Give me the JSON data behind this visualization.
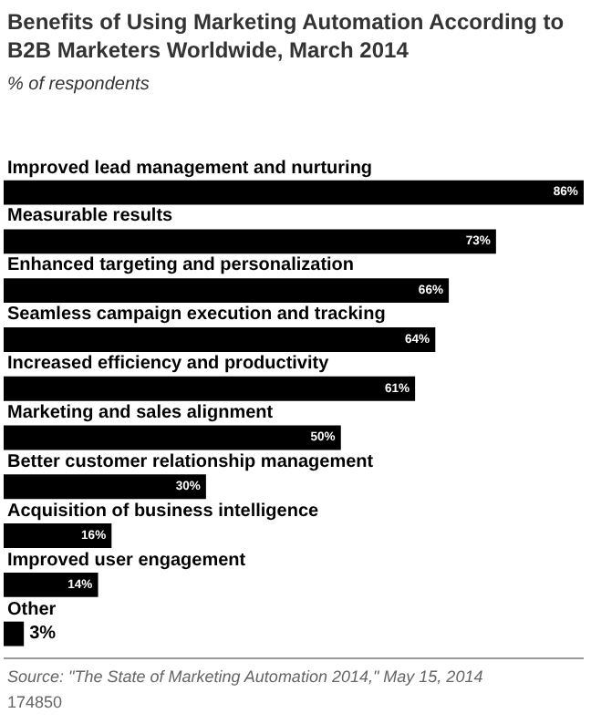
{
  "chart_data": {
    "type": "bar",
    "orientation": "horizontal",
    "title": "Benefits of Using Marketing Automation According to B2B Marketers Worldwide, March 2014",
    "subtitle": "% of respondents",
    "categories": [
      "Improved lead management and nurturing",
      "Measurable results",
      "Enhanced targeting and personalization",
      "Seamless campaign execution and tracking",
      "Increased efficiency and productivity",
      "Marketing and sales alignment",
      "Better customer relationship management",
      "Acquisition of business intelligence",
      "Improved user engagement",
      "Other"
    ],
    "values": [
      86,
      73,
      66,
      64,
      61,
      50,
      30,
      16,
      14,
      3
    ],
    "value_labels": [
      "86%",
      "73%",
      "66%",
      "64%",
      "61%",
      "50%",
      "30%",
      "16%",
      "14%",
      "3%"
    ],
    "color": "#000000",
    "annotations": [
      "Source: \"The State of Marketing Automation 2014,\" May 15, 2014",
      "174850"
    ],
    "legend": false
  }
}
